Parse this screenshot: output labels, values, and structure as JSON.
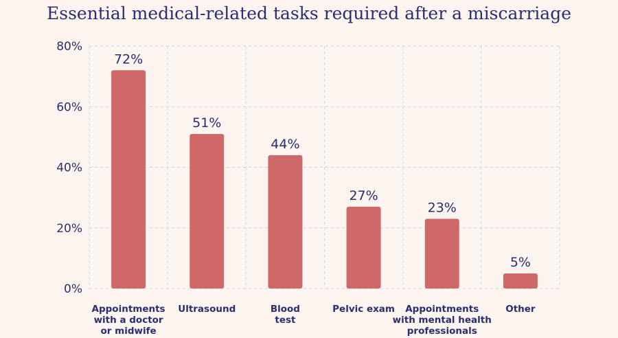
{
  "chart_data": {
    "type": "bar",
    "title": "Essential medical-related tasks required after a miscarriage",
    "categories": [
      [
        "Appointments",
        "with a doctor",
        "or midwife"
      ],
      [
        "Ultrasound"
      ],
      [
        "Blood",
        "test"
      ],
      [
        "Pelvic exam"
      ],
      [
        "Appointments",
        "with mental health",
        "professionals"
      ],
      [
        "Other"
      ]
    ],
    "values": [
      72,
      51,
      44,
      27,
      23,
      5
    ],
    "data_labels": [
      "72%",
      "51%",
      "44%",
      "27%",
      "23%",
      "5%"
    ],
    "ylim": [
      0,
      80
    ],
    "yticks": [
      0,
      20,
      40,
      60,
      80
    ],
    "ytick_labels": [
      "0%",
      "20%",
      "40%",
      "60%",
      "80%"
    ],
    "xlabel": "",
    "ylabel": "",
    "grid": true,
    "legend": "none",
    "colors": {
      "bar": "#cf6869",
      "text": "#2a2d6e",
      "grid": "#cfd0ea",
      "background": "#fcf4ef"
    }
  }
}
